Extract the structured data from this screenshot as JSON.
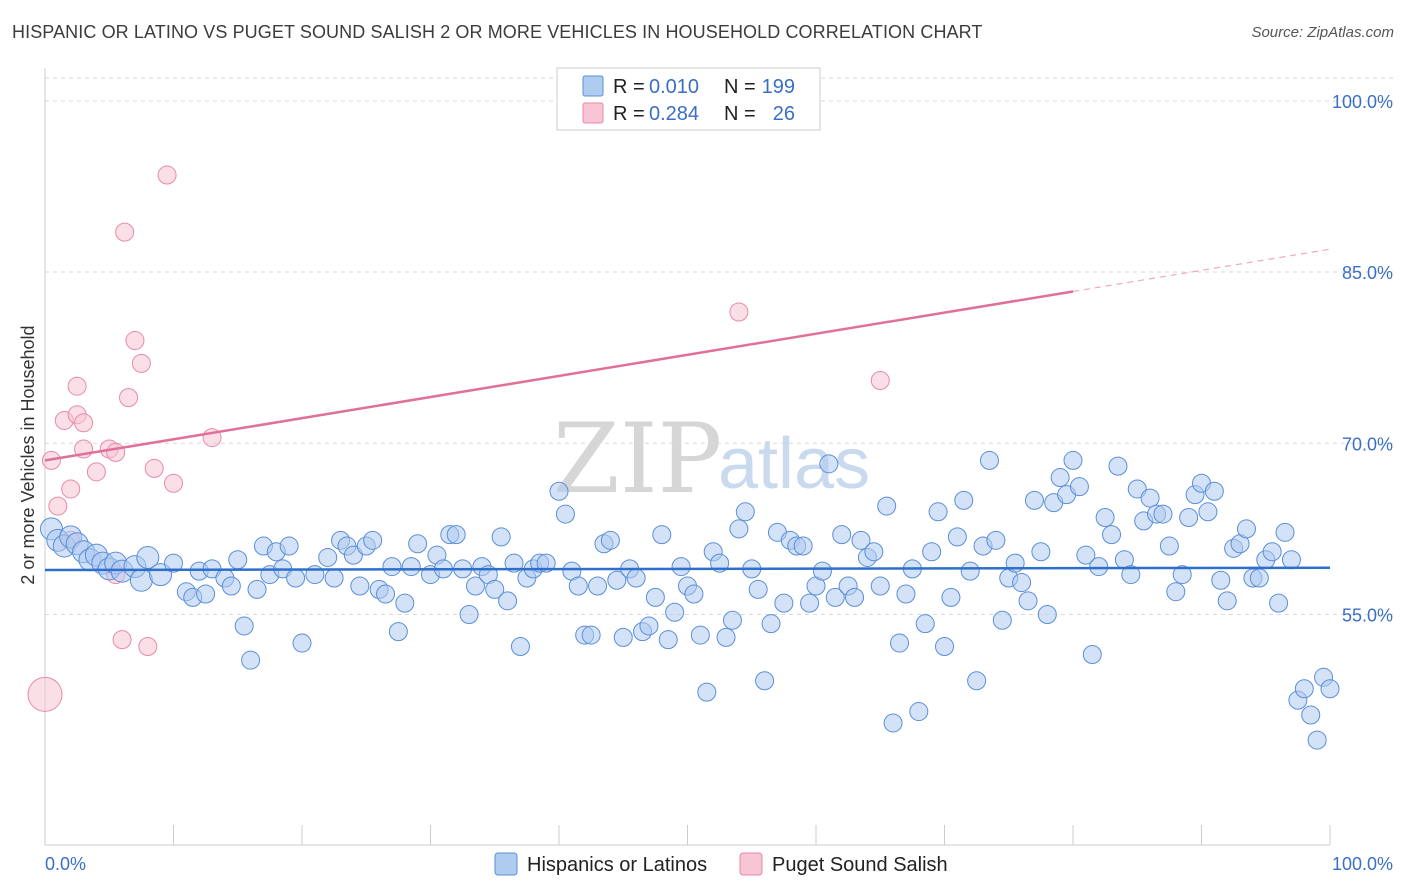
{
  "title": "HISPANIC OR LATINO VS PUGET SOUND SALISH 2 OR MORE VEHICLES IN HOUSEHOLD CORRELATION CHART",
  "source": "Source: ZipAtlas.com",
  "watermark": {
    "zip": "ZIP",
    "atlas": "atlas"
  },
  "colors": {
    "blue_fill": "#aecbf0",
    "blue_stroke": "#5b8fd6",
    "blue_line": "#2e6fcc",
    "pink_fill": "#f7c4d3",
    "pink_stroke": "#e88aa8",
    "pink_line": "#e0709a",
    "grid": "#d9d9d9",
    "tick_text": "#3a6fc4"
  },
  "legend": {
    "rows": [
      {
        "r_label": "R = ",
        "r_value": "0.010",
        "n_label": "N = ",
        "n_value": "199",
        "color": "blue"
      },
      {
        "r_label": "R = ",
        "r_value": "0.284",
        "n_label": "N = ",
        "n_value": "26",
        "color": "pink"
      }
    ]
  },
  "chart_data": {
    "type": "scatter",
    "title": "HISPANIC OR LATINO VS PUGET SOUND SALISH 2 OR MORE VEHICLES IN HOUSEHOLD CORRELATION CHART",
    "xlabel": "",
    "ylabel": "2 or more Vehicles in Household",
    "xlim": [
      0,
      100
    ],
    "ylim": [
      37,
      102
    ],
    "x_tick_labels": [
      "0.0%",
      "100.0%"
    ],
    "y_ticks": [
      55,
      70,
      85,
      100
    ],
    "y_tick_labels": [
      "55.0%",
      "70.0%",
      "85.0%",
      "100.0%"
    ],
    "grid": true,
    "legend_position": "bottom",
    "series": [
      {
        "name": "Hispanics or Latinos",
        "color": "blue",
        "R": 0.01,
        "N": 199,
        "trend": {
          "x": [
            0,
            100
          ],
          "y": [
            58.9,
            59.1
          ],
          "dashed_from": null
        },
        "points": [
          [
            0.5,
            62.5
          ],
          [
            1,
            61.5
          ],
          [
            1.5,
            61
          ],
          [
            2,
            61.8
          ],
          [
            2.5,
            61.2
          ],
          [
            3,
            60.5
          ],
          [
            3.5,
            59.8
          ],
          [
            4,
            60.2
          ],
          [
            4.5,
            59.5
          ],
          [
            5,
            59
          ],
          [
            5.5,
            59.5
          ],
          [
            6,
            58.8
          ],
          [
            7,
            59.2
          ],
          [
            7.5,
            58
          ],
          [
            8,
            60
          ],
          [
            9,
            58.5
          ],
          [
            10,
            59.5
          ],
          [
            11,
            57
          ],
          [
            11.5,
            56.5
          ],
          [
            12,
            58.8
          ],
          [
            12.5,
            56.8
          ],
          [
            13,
            59
          ],
          [
            14,
            58.2
          ],
          [
            14.5,
            57.5
          ],
          [
            15,
            59.8
          ],
          [
            15.5,
            54
          ],
          [
            16,
            51
          ],
          [
            16.5,
            57.2
          ],
          [
            17,
            61
          ],
          [
            17.5,
            58.5
          ],
          [
            18,
            60.5
          ],
          [
            18.5,
            59
          ],
          [
            19,
            61
          ],
          [
            19.5,
            58.2
          ],
          [
            20,
            52.5
          ],
          [
            21,
            58.5
          ],
          [
            22,
            60
          ],
          [
            22.5,
            58.2
          ],
          [
            23,
            61.5
          ],
          [
            23.5,
            61
          ],
          [
            24,
            60.2
          ],
          [
            24.5,
            57.5
          ],
          [
            25,
            61
          ],
          [
            25.5,
            61.5
          ],
          [
            26,
            57.2
          ],
          [
            26.5,
            56.8
          ],
          [
            27,
            59.2
          ],
          [
            27.5,
            53.5
          ],
          [
            28,
            56
          ],
          [
            28.5,
            59.2
          ],
          [
            29,
            61.2
          ],
          [
            30,
            58.5
          ],
          [
            30.5,
            60.2
          ],
          [
            31,
            59
          ],
          [
            31.5,
            62
          ],
          [
            32,
            62
          ],
          [
            32.5,
            59
          ],
          [
            33,
            55
          ],
          [
            33.5,
            57.5
          ],
          [
            34,
            59.2
          ],
          [
            34.5,
            58.5
          ],
          [
            35,
            57.2
          ],
          [
            35.5,
            61.8
          ],
          [
            36,
            56.2
          ],
          [
            36.5,
            59.5
          ],
          [
            37,
            52.2
          ],
          [
            37.5,
            58.2
          ],
          [
            38,
            59
          ],
          [
            38.5,
            59.5
          ],
          [
            39,
            59.5
          ],
          [
            40,
            65.8
          ],
          [
            40.5,
            63.8
          ],
          [
            41,
            58.8
          ],
          [
            41.5,
            57.5
          ],
          [
            42,
            53.2
          ],
          [
            42.5,
            53.2
          ],
          [
            43,
            57.5
          ],
          [
            43.5,
            61.2
          ],
          [
            44,
            61.5
          ],
          [
            44.5,
            58
          ],
          [
            45,
            53
          ],
          [
            45.5,
            59
          ],
          [
            46,
            58.2
          ],
          [
            46.5,
            53.5
          ],
          [
            47,
            54
          ],
          [
            47.5,
            56.5
          ],
          [
            48,
            62
          ],
          [
            48.5,
            52.8
          ],
          [
            49,
            55.2
          ],
          [
            49.5,
            59.2
          ],
          [
            50,
            57.5
          ],
          [
            50.5,
            56.8
          ],
          [
            51,
            53.2
          ],
          [
            51.5,
            48.2
          ],
          [
            52,
            60.5
          ],
          [
            52.5,
            59.5
          ],
          [
            53,
            53
          ],
          [
            53.5,
            54.5
          ],
          [
            54,
            62.5
          ],
          [
            54.5,
            64
          ],
          [
            55,
            59
          ],
          [
            55.5,
            57.2
          ],
          [
            56,
            49.2
          ],
          [
            56.5,
            54.2
          ],
          [
            57,
            62.2
          ],
          [
            57.5,
            56
          ],
          [
            58,
            61.5
          ],
          [
            58.5,
            61
          ],
          [
            59,
            61
          ],
          [
            59.5,
            56
          ],
          [
            60,
            57.5
          ],
          [
            60.5,
            58.8
          ],
          [
            61,
            68.2
          ],
          [
            61.5,
            56.5
          ],
          [
            62,
            62
          ],
          [
            62.5,
            57.5
          ],
          [
            63,
            56.5
          ],
          [
            63.5,
            61.5
          ],
          [
            64,
            60
          ],
          [
            64.5,
            60.5
          ],
          [
            65,
            57.5
          ],
          [
            65.5,
            64.5
          ],
          [
            66,
            45.5
          ],
          [
            66.5,
            52.5
          ],
          [
            67,
            56.8
          ],
          [
            67.5,
            59
          ],
          [
            68,
            46.5
          ],
          [
            68.5,
            54.2
          ],
          [
            69,
            60.5
          ],
          [
            69.5,
            64
          ],
          [
            70,
            52.2
          ],
          [
            70.5,
            56.5
          ],
          [
            71,
            61.8
          ],
          [
            71.5,
            65
          ],
          [
            72,
            58.8
          ],
          [
            72.5,
            49.2
          ],
          [
            73,
            61
          ],
          [
            73.5,
            68.5
          ],
          [
            74,
            61.5
          ],
          [
            74.5,
            54.5
          ],
          [
            75,
            58.2
          ],
          [
            75.5,
            59.5
          ],
          [
            76,
            57.8
          ],
          [
            76.5,
            56.2
          ],
          [
            77,
            65
          ],
          [
            77.5,
            60.5
          ],
          [
            78,
            55
          ],
          [
            78.5,
            64.8
          ],
          [
            79,
            67
          ],
          [
            79.5,
            65.5
          ],
          [
            80,
            68.5
          ],
          [
            80.5,
            66.2
          ],
          [
            81,
            60.2
          ],
          [
            81.5,
            51.5
          ],
          [
            82,
            59.2
          ],
          [
            82.5,
            63.5
          ],
          [
            83,
            62
          ],
          [
            83.5,
            68
          ],
          [
            84,
            59.8
          ],
          [
            84.5,
            58.5
          ],
          [
            85,
            66
          ],
          [
            85.5,
            63.2
          ],
          [
            86,
            65.2
          ],
          [
            86.5,
            63.8
          ],
          [
            87,
            63.8
          ],
          [
            87.5,
            61
          ],
          [
            88,
            57
          ],
          [
            88.5,
            58.5
          ],
          [
            89,
            63.5
          ],
          [
            89.5,
            65.5
          ],
          [
            90,
            66.5
          ],
          [
            90.5,
            64
          ],
          [
            91,
            65.8
          ],
          [
            91.5,
            58
          ],
          [
            92,
            56.2
          ],
          [
            92.5,
            60.8
          ],
          [
            93,
            61.2
          ],
          [
            93.5,
            62.5
          ],
          [
            94,
            58.2
          ],
          [
            94.5,
            58.2
          ],
          [
            95,
            59.8
          ],
          [
            95.5,
            60.5
          ],
          [
            96,
            56
          ],
          [
            96.5,
            62.2
          ],
          [
            97,
            59.8
          ],
          [
            97.5,
            47.5
          ],
          [
            98,
            48.5
          ],
          [
            98.5,
            46.2
          ],
          [
            99,
            44
          ],
          [
            99.5,
            49.5
          ],
          [
            100,
            48.5
          ]
        ]
      },
      {
        "name": "Puget Sound Salish",
        "color": "pink",
        "R": 0.284,
        "N": 26,
        "trend": {
          "x": [
            0,
            100
          ],
          "y": [
            68.5,
            87.0
          ],
          "dashed_from": 80
        },
        "points": [
          [
            0,
            48
          ],
          [
            0.5,
            68.5
          ],
          [
            1,
            64.5
          ],
          [
            1.5,
            72
          ],
          [
            2,
            61.5
          ],
          [
            2,
            66
          ],
          [
            2.5,
            75
          ],
          [
            2.5,
            72.5
          ],
          [
            3,
            71.8
          ],
          [
            3,
            69.5
          ],
          [
            4,
            67.5
          ],
          [
            5,
            69.5
          ],
          [
            5.5,
            69.2
          ],
          [
            5.5,
            58.5
          ],
          [
            6,
            52.8
          ],
          [
            6.2,
            88.5
          ],
          [
            6.5,
            74
          ],
          [
            7,
            79
          ],
          [
            7.5,
            77
          ],
          [
            8,
            52.2
          ],
          [
            8.5,
            67.8
          ],
          [
            9.5,
            93.5
          ],
          [
            10,
            66.5
          ],
          [
            13,
            70.5
          ],
          [
            54,
            81.5
          ],
          [
            65,
            75.5
          ]
        ]
      }
    ]
  },
  "bottom_legend": {
    "items": [
      {
        "label": "Hispanics or Latinos",
        "color": "blue"
      },
      {
        "label": "Puget Sound Salish",
        "color": "pink"
      }
    ]
  }
}
